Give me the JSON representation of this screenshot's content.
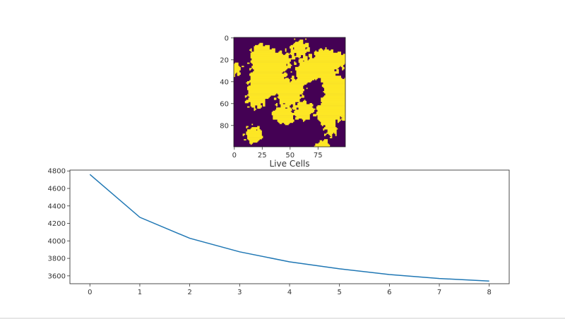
{
  "chart_data": [
    {
      "type": "heatmap",
      "description_of_values": "binary cell grid (0 = dead, 1 = live)",
      "grid_size": [
        100,
        100
      ],
      "colors": {
        "dead": "#440154",
        "live": "#fde725"
      },
      "xticks": [
        "0",
        "25",
        "50",
        "75"
      ],
      "yticks": [
        "0",
        "20",
        "40",
        "60",
        "80"
      ],
      "xlim": [
        0,
        100
      ],
      "ylim": [
        0,
        100
      ]
    },
    {
      "type": "line",
      "title": "Live Cells",
      "x": [
        0,
        1,
        2,
        3,
        4,
        5,
        6,
        7,
        8
      ],
      "series": [
        {
          "values": [
            4760,
            4270,
            4030,
            3875,
            3760,
            3680,
            3615,
            3570,
            3540
          ],
          "color": "#1f77b4"
        }
      ],
      "xticks": [
        "0",
        "1",
        "2",
        "3",
        "4",
        "5",
        "6",
        "7",
        "8"
      ],
      "yticks": [
        "3600",
        "3800",
        "4000",
        "4200",
        "4400",
        "4600",
        "4800"
      ],
      "xlim": [
        -0.4,
        8.4
      ],
      "ylim": [
        3510,
        4810
      ],
      "grid": false
    }
  ]
}
